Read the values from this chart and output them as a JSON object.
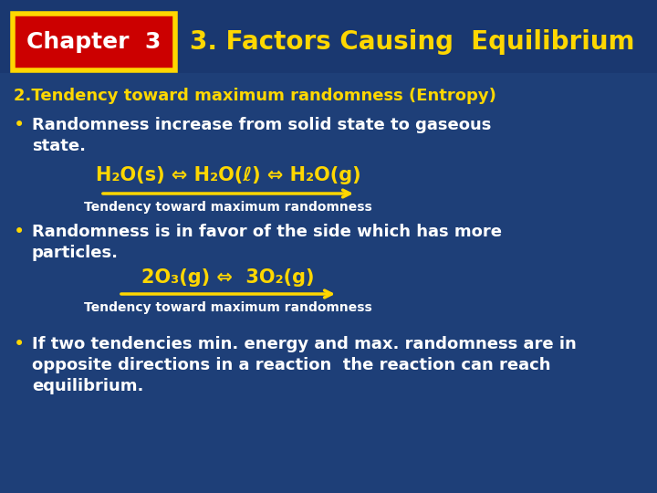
{
  "bg_color": "#1e3f78",
  "header_bg": "#1e3f78",
  "title_text": "3. Factors Causing  Equilibrium",
  "title_color": "#FFD700",
  "title_fontsize": 20,
  "chapter_box_border": "#FFD700",
  "chapter_box_fill": "#CC0000",
  "chapter_text": "Chapter  3",
  "chapter_text_color": "#FFFFFF",
  "chapter_fontsize": 18,
  "heading_text": "2.Tendency toward maximum randomness (Entropy)",
  "heading_color": "#FFD700",
  "heading_fontsize": 13,
  "bullet_color": "#FFD700",
  "body_color": "#FFFFFF",
  "body_fontsize": 13,
  "arrow_color": "#FFD700",
  "label_color": "#FFFFFF",
  "label_fontsize": 10,
  "eq1_fontsize": 15,
  "eq2_fontsize": 15,
  "eq1_label": "Tendency toward maximum randomness",
  "eq2_label": "Tendency toward maximum randomness",
  "bullet1_line1": "Randomness increase from solid state to gaseous",
  "bullet1_line2": "state.",
  "bullet2_line1": "Randomness is in favor of the side which has more",
  "bullet2_line2": "particles.",
  "bullet3_line1": "If two tendencies min. energy and max. randomness are in",
  "bullet3_line2": "opposite directions in a reaction  the reaction can reach",
  "bullet3_line3": "equilibrium."
}
